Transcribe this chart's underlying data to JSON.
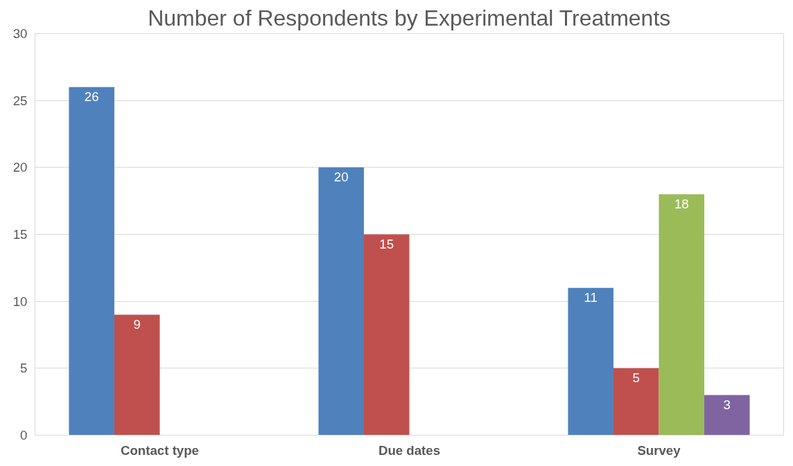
{
  "chart_data": {
    "type": "bar",
    "title": "Number of Respondents by Experimental Treatments",
    "categories": [
      "Contact type",
      "Due dates",
      "Survey"
    ],
    "series": [
      {
        "color": "#4f81bd",
        "values": [
          26,
          20,
          11
        ],
        "value_labels": [
          "26",
          "20",
          "11"
        ]
      },
      {
        "color": "#c0504d",
        "values": [
          9,
          15,
          5
        ],
        "value_labels": [
          "9",
          "15",
          "5"
        ]
      },
      {
        "color": "#9bbb59",
        "values": [
          0,
          0,
          18
        ],
        "value_labels": [
          null,
          null,
          "18"
        ]
      },
      {
        "color": "#8064a2",
        "values": [
          0,
          0,
          3
        ],
        "value_labels": [
          null,
          null,
          "3"
        ]
      }
    ],
    "ylim": [
      0,
      30
    ],
    "yticks": [
      0,
      5,
      10,
      15,
      20,
      25,
      30
    ],
    "grid": "y"
  }
}
